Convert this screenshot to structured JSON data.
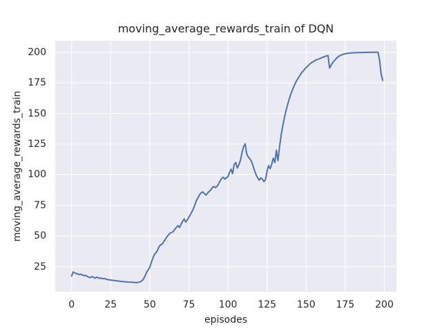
{
  "chart_data": {
    "type": "line",
    "title": "moving_average_rewards_train of DQN",
    "xlabel": "episodes",
    "ylabel": "moving_average_rewards_train",
    "x_ticks": [
      0,
      25,
      50,
      75,
      100,
      125,
      150,
      175,
      200
    ],
    "y_ticks": [
      25,
      50,
      75,
      100,
      125,
      150,
      175,
      200
    ],
    "xlim": [
      -10.45,
      207.75
    ],
    "ylim": [
      4.6,
      209.4
    ],
    "grid": true,
    "legend": "none",
    "style": {
      "figure_bg": "#ffffff",
      "axes_bg": "#eaeaf2",
      "grid_color": "#ffffff",
      "line_color": "#4c72b0",
      "text_color": "#262626"
    },
    "series": [
      {
        "name": "moving_average_rewards_train",
        "x_start": 0,
        "x_step": 1,
        "values": [
          17.3,
          20.7,
          19.9,
          19.5,
          19.0,
          18.6,
          18.9,
          18.2,
          17.6,
          17.9,
          17.1,
          16.4,
          16.1,
          17.0,
          16.4,
          15.6,
          16.4,
          16.0,
          15.4,
          15.8,
          15.1,
          15.4,
          14.8,
          14.5,
          14.3,
          14.1,
          13.9,
          13.8,
          13.6,
          13.5,
          13.3,
          13.1,
          13.0,
          12.8,
          12.7,
          12.6,
          12.5,
          12.4,
          12.3,
          12.3,
          12.2,
          12.1,
          12.1,
          12.3,
          12.7,
          13.5,
          15.0,
          17.5,
          20.5,
          22.5,
          24.5,
          28.5,
          32.0,
          35.0,
          36.5,
          38.5,
          41.5,
          43.0,
          43.5,
          45.5,
          47.5,
          49.5,
          51.0,
          52.5,
          53.0,
          53.5,
          55.5,
          57.0,
          58.5,
          57.0,
          59.5,
          62.0,
          64.0,
          61.5,
          63.0,
          65.5,
          67.5,
          70.0,
          72.5,
          76.0,
          79.5,
          81.5,
          84.0,
          85.5,
          86.0,
          84.5,
          83.5,
          85.0,
          86.5,
          87.5,
          89.5,
          90.5,
          89.5,
          90.5,
          92.5,
          95.0,
          97.0,
          98.0,
          96.5,
          97.5,
          98.5,
          102.0,
          104.5,
          101.0,
          108.5,
          110.0,
          105.5,
          108.0,
          112.0,
          118.0,
          123.0,
          125.3,
          117.0,
          114.5,
          113.0,
          111.0,
          107.5,
          103.5,
          100.0,
          97.5,
          95.5,
          97.5,
          96.5,
          94.5,
          96.0,
          103.0,
          107.5,
          105.0,
          108.5,
          113.5,
          110.0,
          120.0,
          111.5,
          123.0,
          132.0,
          139.5,
          146.0,
          151.5,
          156.5,
          161.0,
          165.0,
          168.5,
          171.5,
          174.5,
          177.0,
          179.0,
          181.0,
          183.0,
          184.5,
          186.0,
          187.5,
          188.5,
          190.0,
          191.0,
          192.0,
          192.5,
          193.5,
          194.0,
          194.5,
          195.0,
          195.5,
          196.0,
          196.5,
          197.0,
          197.3,
          187.0,
          189.5,
          191.5,
          193.0,
          194.5,
          195.8,
          196.8,
          197.5,
          198.0,
          198.4,
          198.7,
          199.0,
          199.2,
          199.3,
          199.4,
          199.5,
          199.6,
          199.6,
          199.7,
          199.7,
          199.8,
          199.8,
          199.8,
          199.9,
          199.9,
          199.9,
          199.9,
          200.0,
          200.0,
          200.0,
          200.0,
          200.0,
          193.0,
          182.0,
          177.0
        ]
      }
    ]
  }
}
